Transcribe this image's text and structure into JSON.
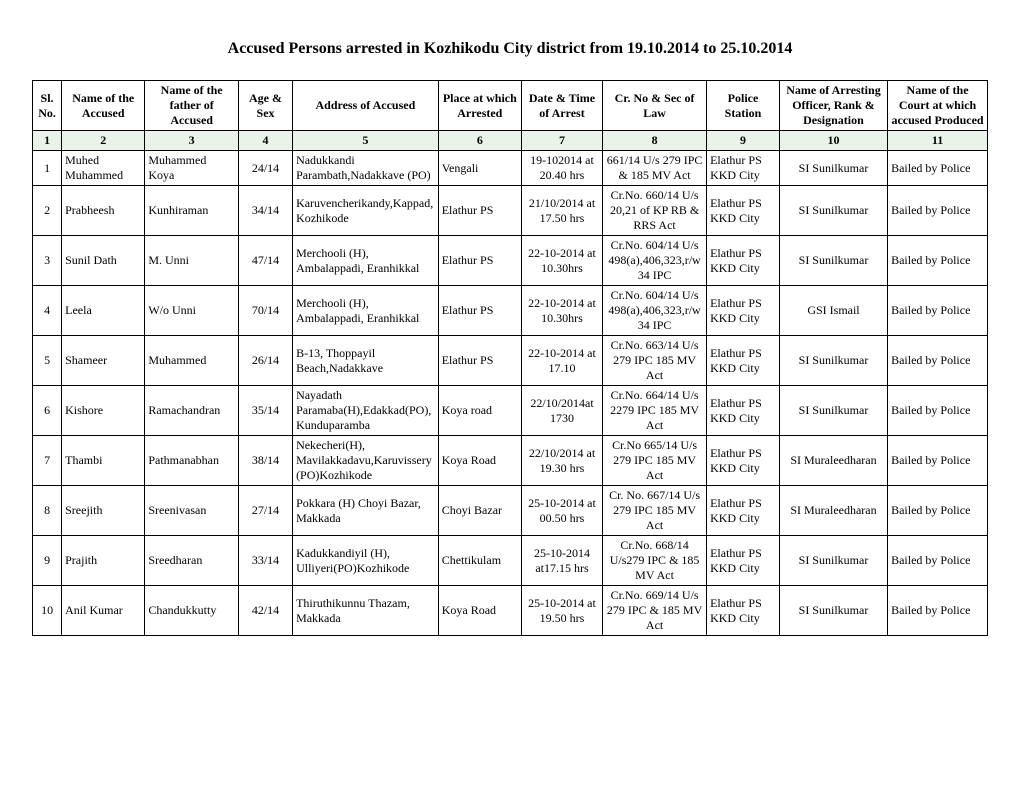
{
  "title": "Accused Persons arrested in   Kozhikodu City district from 19.10.2014 to 25.10.2014",
  "headers": {
    "h1": "Sl. No.",
    "h2": "Name of the Accused",
    "h3": "Name of the father of Accused",
    "h4": "Age & Sex",
    "h5": "Address of Accused",
    "h6": "Place at which Arrested",
    "h7": "Date & Time of Arrest",
    "h8": "Cr. No & Sec of Law",
    "h9": "Police Station",
    "h10": "Name of Arresting Officer, Rank & Designation",
    "h11": "Name of the Court at which accused Produced"
  },
  "numrow": {
    "n1": "1",
    "n2": "2",
    "n3": "3",
    "n4": "4",
    "n5": "5",
    "n6": "6",
    "n7": "7",
    "n8": "8",
    "n9": "9",
    "n10": "10",
    "n11": "11"
  },
  "rows": [
    {
      "sl": "1",
      "name": "Muhed Muhammed",
      "father": "Muhammed Koya",
      "age": "24/14",
      "addr": "Nadukkandi Parambath,Nadakkave (PO)",
      "place": "Vengali",
      "dt": "19-102014 at 20.40 hrs",
      "cr": "661/14 U/s 279 IPC & 185 MV Act",
      "ps": "Elathur PS KKD City",
      "off": "SI Sunilkumar",
      "court": "Bailed by Police"
    },
    {
      "sl": "2",
      "name": "Prabheesh",
      "father": "Kunhiraman",
      "age": "34/14",
      "addr": "Karuvencherikandy,Kappad, Kozhikode",
      "place": "Elathur PS",
      "dt": "21/10/2014 at 17.50 hrs",
      "cr": "Cr.No. 660/14 U/s 20,21 of KP RB & RRS Act",
      "ps": "Elathur PS KKD City",
      "off": "SI Sunilkumar",
      "court": "Bailed by Police"
    },
    {
      "sl": "3",
      "name": "Sunil Dath",
      "father": "M. Unni",
      "age": "47/14",
      "addr": "Merchooli (H), Ambalappadi, Eranhikkal",
      "place": "Elathur PS",
      "dt": "22-10-2014 at 10.30hrs",
      "cr": "Cr.No. 604/14 U/s 498(a),406,323,r/w 34 IPC",
      "ps": "Elathur PS KKD City",
      "off": "SI Sunilkumar",
      "court": "Bailed by Police"
    },
    {
      "sl": "4",
      "name": "Leela",
      "father": "W/o Unni",
      "age": "70/14",
      "addr": "Merchooli (H), Ambalappadi, Eranhikkal",
      "place": "Elathur PS",
      "dt": "22-10-2014 at 10.30hrs",
      "cr": "Cr.No. 604/14 U/s 498(a),406,323,r/w 34 IPC",
      "ps": "Elathur PS KKD City",
      "off": "GSI Ismail",
      "court": "Bailed by Police"
    },
    {
      "sl": "5",
      "name": "Shameer",
      "father": "Muhammed",
      "age": "26/14",
      "addr": "B-13, Thoppayil Beach,Nadakkave",
      "place": "Elathur PS",
      "dt": "22-10-2014 at 17.10",
      "cr": "Cr.No. 663/14 U/s 279 IPC 185 MV Act",
      "ps": "Elathur PS KKD City",
      "off": "SI Sunilkumar",
      "court": "Bailed by Police"
    },
    {
      "sl": "6",
      "name": "Kishore",
      "father": "Ramachandran",
      "age": "35/14",
      "addr": "Nayadath Paramaba(H),Edakkad(PO),Kunduparamba",
      "place": "Koya road",
      "dt": "22/10/2014at 1730",
      "cr": "Cr.No. 664/14 U/s 2279 IPC 185 MV Act",
      "ps": "Elathur PS KKD City",
      "off": "SI Sunilkumar",
      "court": "Bailed by Police"
    },
    {
      "sl": "7",
      "name": "Thambi",
      "father": "Pathmanabhan",
      "age": "38/14",
      "addr": "Nekecheri(H), Mavilakkadavu,Karuvissery (PO)Kozhikode",
      "place": "Koya Road",
      "dt": "22/10/2014 at 19.30 hrs",
      "cr": "Cr.No 665/14 U/s 279 IPC 185 MV Act",
      "ps": "Elathur PS KKD City",
      "off": "SI Muraleedharan",
      "court": "Bailed by Police"
    },
    {
      "sl": "8",
      "name": "Sreejith",
      "father": "Sreenivasan",
      "age": "27/14",
      "addr": "Pokkara (H) Choyi Bazar, Makkada",
      "place": "Choyi Bazar",
      "dt": "25-10-2014 at 00.50 hrs",
      "cr": "Cr. No. 667/14 U/s 279 IPC 185 MV Act",
      "ps": "Elathur PS KKD City",
      "off": "SI Muraleedharan",
      "court": "Bailed by Police"
    },
    {
      "sl": "9",
      "name": "Prajith",
      "father": "Sreedharan",
      "age": "33/14",
      "addr": "Kadukkandiyil (H), Ulliyeri(PO)Kozhikode",
      "place": "Chettikulam",
      "dt": "25-10-2014 at17.15 hrs",
      "cr": "Cr.No. 668/14 U/s279 IPC & 185 MV Act",
      "ps": "Elathur PS KKD City",
      "off": "SI Sunilkumar",
      "court": "Bailed by Police"
    },
    {
      "sl": "10",
      "name": "Anil Kumar",
      "father": "Chandukkutty",
      "age": "42/14",
      "addr": "Thiruthikunnu Thazam, Makkada",
      "place": "Koya Road",
      "dt": "25-10-2014 at 19.50 hrs",
      "cr": "Cr.No. 669/14 U/s 279 IPC & 185 MV Act",
      "ps": "Elathur PS KKD City",
      "off": "SI Sunilkumar",
      "court": "Bailed by Police"
    }
  ]
}
